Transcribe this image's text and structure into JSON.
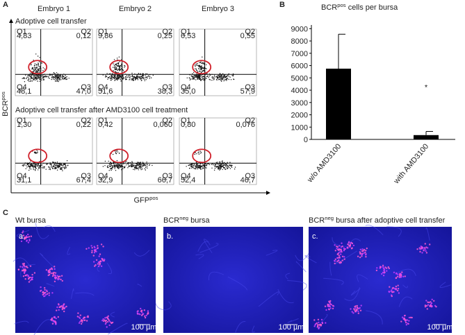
{
  "panel_a": {
    "letter": "A",
    "columns": [
      "Embryo 1",
      "Embryo 2",
      "Embryo 3"
    ],
    "rows": [
      {
        "label": "Adoptive cell transfer",
        "plots": [
          [
            "4,83",
            "0,12",
            "48,1",
            "47,0"
          ],
          [
            "9,86",
            "0,25",
            "51,6",
            "38,3"
          ],
          [
            "6,53",
            "0,55",
            "35,0",
            "57,9"
          ]
        ]
      },
      {
        "label": "Adoptive cell transfer after AMD3100 cell treatment",
        "plots": [
          [
            "1,30",
            "0,22",
            "31,1",
            "67,4"
          ],
          [
            "0,42",
            "0,060",
            "32,9",
            "66,7"
          ],
          [
            "0,80",
            "0,076",
            "52,4",
            "46,7"
          ]
        ]
      }
    ],
    "quadrant_names": [
      "Q1",
      "Q2",
      "Q4",
      "Q3"
    ],
    "y_label": [
      "BCR",
      "pos"
    ],
    "x_label": [
      "GFP",
      "pos"
    ]
  },
  "chart_data": {
    "type": "bar",
    "letter": "B",
    "title": [
      "BCR",
      "pos",
      " cells per bursa"
    ],
    "categories": [
      "w/o AMD3100",
      "with AMD3100"
    ],
    "values": [
      5750,
      350
    ],
    "errors": [
      2800,
      300
    ],
    "color": "#000000",
    "ylim": [
      0,
      9300
    ],
    "yticks": [
      0,
      1000,
      2000,
      3000,
      4000,
      5000,
      6000,
      7000,
      8000,
      9000
    ],
    "annotation": "*"
  },
  "panel_c": {
    "letter": "C",
    "images": [
      {
        "label": [
          "Wt bursa",
          "",
          ""
        ],
        "letter": "a.",
        "scale": "100 µm"
      },
      {
        "label": [
          "BCR",
          "neg",
          " bursa"
        ],
        "letter": "b.",
        "scale": "100 µm"
      },
      {
        "label": [
          "BCR",
          "neg",
          " bursa after adoptive cell transfer"
        ],
        "letter": "c.",
        "scale": "100 µm"
      }
    ]
  }
}
